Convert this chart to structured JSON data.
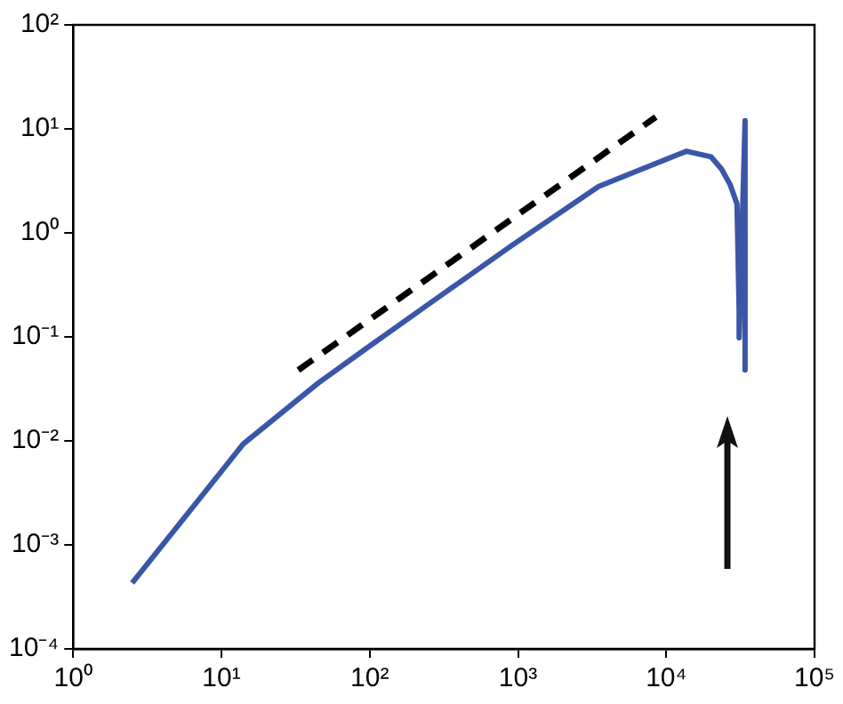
{
  "chart_data": {
    "type": "line",
    "log": "xy",
    "grid": false,
    "legend": false,
    "marker": "none",
    "xlim": [
      1,
      100000
    ],
    "ylim": [
      0.0001,
      100
    ],
    "xticks": [
      {
        "value": 1,
        "label": "10⁰"
      },
      {
        "value": 10,
        "label": "10¹"
      },
      {
        "value": 100,
        "label": "10²"
      },
      {
        "value": 1000,
        "label": "10³"
      },
      {
        "value": 10000,
        "label": "10⁴"
      },
      {
        "value": 100000,
        "label": "10⁵"
      }
    ],
    "yticks": [
      {
        "value": 0.0001,
        "label": "10⁻⁴"
      },
      {
        "value": 0.001,
        "label": "10⁻³"
      },
      {
        "value": 0.01,
        "label": "10⁻²"
      },
      {
        "value": 0.1,
        "label": "10⁻¹"
      },
      {
        "value": 1,
        "label": "10⁰"
      },
      {
        "value": 10,
        "label": "10¹"
      },
      {
        "value": 100,
        "label": "10²"
      }
    ],
    "series": [
      {
        "color": "#3a56a8",
        "line_style": "solid",
        "x": [
          2.5,
          14,
          45,
          93,
          230,
          900,
          3500,
          13700,
          20000,
          23600,
          27000,
          30000,
          31000,
          31000,
          34000,
          34000
        ],
        "values": [
          0.00043,
          0.0093,
          0.036,
          0.076,
          0.19,
          0.75,
          2.8,
          6.1,
          5.4,
          4.1,
          2.9,
          1.9,
          0.18,
          0.098,
          12,
          0.048
        ]
      },
      {
        "color": "#000000",
        "line_style": "dashed",
        "x": [
          33,
          8500
        ],
        "values": [
          0.048,
          13
        ]
      }
    ]
  }
}
